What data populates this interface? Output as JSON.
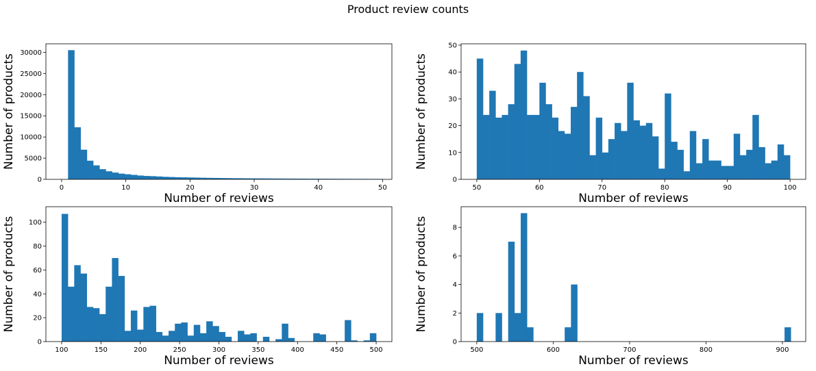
{
  "title": "Product review counts",
  "chart_data": [
    {
      "type": "bar",
      "xlabel": "Number of reviews",
      "ylabel": "Number of products",
      "xlim": [
        -2.45,
        51.45
      ],
      "ylim": [
        0,
        32000
      ],
      "xticks": [
        0,
        10,
        20,
        30,
        40,
        50
      ],
      "yticks": [
        0,
        5000,
        10000,
        15000,
        20000,
        25000,
        30000
      ],
      "bin_start": 1,
      "bin_width": 0.98,
      "values": [
        30500,
        12300,
        7000,
        4400,
        3300,
        2400,
        1900,
        1600,
        1350,
        1200,
        1050,
        900,
        800,
        750,
        680,
        600,
        550,
        500,
        470,
        440,
        410,
        380,
        350,
        330,
        310,
        290,
        270,
        260,
        240,
        230,
        220,
        210,
        200,
        190,
        180,
        170,
        165,
        160,
        150,
        145,
        140,
        135,
        130,
        125,
        120,
        115,
        110,
        105,
        100,
        95
      ]
    },
    {
      "type": "bar",
      "xlabel": "Number of reviews",
      "ylabel": "Number of products",
      "xlim": [
        47.5,
        102.5
      ],
      "ylim": [
        0,
        50.5
      ],
      "xticks": [
        50,
        60,
        70,
        80,
        90,
        100
      ],
      "yticks": [
        0,
        10,
        20,
        30,
        40,
        50
      ],
      "bin_start": 50,
      "bin_width": 1,
      "values": [
        45,
        24,
        33,
        23,
        24,
        28,
        43,
        48,
        24,
        24,
        36,
        28,
        23,
        18,
        17,
        27,
        40,
        31,
        9,
        23,
        10,
        15,
        21,
        18,
        36,
        22,
        20,
        21,
        16,
        4,
        32,
        14,
        11,
        3,
        18,
        6,
        15,
        7,
        7,
        5,
        5,
        17,
        9,
        11,
        24,
        12,
        6,
        7,
        13,
        9
      ]
    },
    {
      "type": "bar",
      "xlabel": "Number of reviews",
      "ylabel": "Number of products",
      "xlim": [
        80,
        520
      ],
      "ylim": [
        0,
        113
      ],
      "xticks": [
        100,
        150,
        200,
        250,
        300,
        350,
        400,
        450,
        500
      ],
      "yticks": [
        0,
        20,
        40,
        60,
        80,
        100
      ],
      "bin_start": 100,
      "bin_width": 8,
      "values": [
        107,
        46,
        64,
        57,
        29,
        28,
        23,
        46,
        70,
        55,
        9,
        26,
        10,
        29,
        30,
        8,
        5,
        9,
        15,
        16,
        5,
        14,
        7,
        17,
        13,
        8,
        4,
        0,
        9,
        6,
        7,
        0,
        4,
        0,
        2,
        15,
        3,
        0,
        0,
        0,
        7,
        6,
        0,
        0,
        0,
        18,
        1,
        0,
        1,
        7
      ]
    },
    {
      "type": "bar",
      "xlabel": "Number of reviews",
      "ylabel": "Number of products",
      "xlim": [
        479.5,
        930.5
      ],
      "ylim": [
        0,
        9.45
      ],
      "xticks": [
        500,
        600,
        700,
        800,
        900
      ],
      "yticks": [
        0,
        2,
        4,
        6,
        8
      ],
      "bin_start": 500,
      "bin_width": 8.22,
      "values": [
        2,
        0,
        0,
        2,
        0,
        7,
        2,
        9,
        1,
        0,
        0,
        0,
        0,
        0,
        1,
        4,
        0,
        0,
        0,
        0,
        0,
        0,
        0,
        0,
        0,
        0,
        0,
        0,
        0,
        0,
        0,
        0,
        0,
        0,
        0,
        0,
        0,
        0,
        0,
        0,
        0,
        0,
        0,
        0,
        0,
        0,
        0,
        0,
        0,
        1
      ]
    }
  ]
}
